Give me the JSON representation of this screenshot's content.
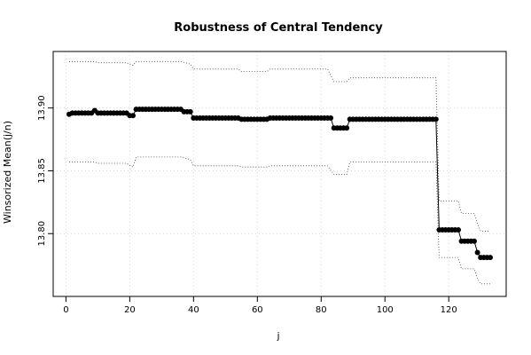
{
  "chart_data": {
    "type": "line",
    "title": "Robustness of Central Tendency",
    "xlabel": "j",
    "ylabel": "Winsorized Mean(j/n)",
    "xlim": [
      -4,
      138
    ],
    "ylim": [
      13.75,
      13.945
    ],
    "xticks": [
      0,
      20,
      40,
      60,
      80,
      100,
      120
    ],
    "yticks": [
      13.8,
      13.85,
      13.9
    ],
    "xtick_labels": [
      "0",
      "20",
      "40",
      "60",
      "80",
      "100",
      "120"
    ],
    "ytick_labels": [
      "13.80",
      "13.85",
      "13.90"
    ],
    "grid": true,
    "series": [
      {
        "style": "points",
        "segments": [
          {
            "from": 1,
            "to": 1,
            "y": 13.895
          },
          {
            "from": 2,
            "to": 8,
            "y": 13.896
          },
          {
            "from": 9,
            "to": 9,
            "y": 13.898
          },
          {
            "from": 10,
            "to": 19,
            "y": 13.896
          },
          {
            "from": 20,
            "to": 21,
            "y": 13.894
          },
          {
            "from": 22,
            "to": 36,
            "y": 13.899
          },
          {
            "from": 37,
            "to": 39,
            "y": 13.897
          },
          {
            "from": 40,
            "to": 54,
            "y": 13.892
          },
          {
            "from": 55,
            "to": 63,
            "y": 13.891
          },
          {
            "from": 64,
            "to": 83,
            "y": 13.892
          },
          {
            "from": 84,
            "to": 88,
            "y": 13.884
          },
          {
            "from": 89,
            "to": 116,
            "y": 13.891
          },
          {
            "from": 117,
            "to": 123,
            "y": 13.803
          },
          {
            "from": 124,
            "to": 128,
            "y": 13.794
          },
          {
            "from": 129,
            "to": 129,
            "y": 13.785
          },
          {
            "from": 130,
            "to": 133,
            "y": 13.781
          }
        ]
      },
      {
        "style": "dotted-upper",
        "points": [
          [
            1,
            13.937
          ],
          [
            9,
            13.937
          ],
          [
            10,
            13.936
          ],
          [
            19,
            13.936
          ],
          [
            21,
            13.934
          ],
          [
            22,
            13.937
          ],
          [
            36,
            13.937
          ],
          [
            39,
            13.935
          ],
          [
            40,
            13.931
          ],
          [
            54,
            13.931
          ],
          [
            55,
            13.929
          ],
          [
            63,
            13.929
          ],
          [
            64,
            13.931
          ],
          [
            82,
            13.931
          ],
          [
            84,
            13.921
          ],
          [
            88,
            13.921
          ],
          [
            89,
            13.924
          ],
          [
            116,
            13.924
          ],
          [
            117,
            13.826
          ],
          [
            123,
            13.826
          ],
          [
            124,
            13.816
          ],
          [
            128,
            13.816
          ],
          [
            129,
            13.808
          ],
          [
            130,
            13.802
          ],
          [
            133,
            13.802
          ]
        ]
      },
      {
        "style": "dotted-lower",
        "points": [
          [
            1,
            13.857
          ],
          [
            9,
            13.857
          ],
          [
            10,
            13.856
          ],
          [
            19,
            13.856
          ],
          [
            21,
            13.853
          ],
          [
            22,
            13.861
          ],
          [
            36,
            13.861
          ],
          [
            39,
            13.859
          ],
          [
            40,
            13.854
          ],
          [
            54,
            13.854
          ],
          [
            55,
            13.853
          ],
          [
            63,
            13.853
          ],
          [
            64,
            13.854
          ],
          [
            82,
            13.854
          ],
          [
            84,
            13.847
          ],
          [
            88,
            13.847
          ],
          [
            89,
            13.857
          ],
          [
            116,
            13.857
          ],
          [
            117,
            13.781
          ],
          [
            123,
            13.781
          ],
          [
            124,
            13.772
          ],
          [
            128,
            13.772
          ],
          [
            129,
            13.764
          ],
          [
            130,
            13.76
          ],
          [
            133,
            13.76
          ]
        ]
      }
    ]
  }
}
